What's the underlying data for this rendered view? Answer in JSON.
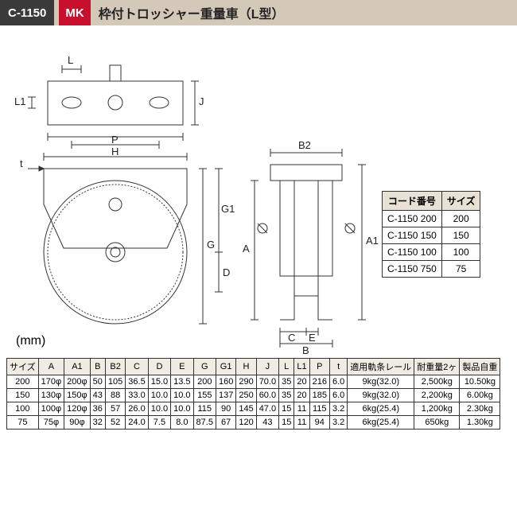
{
  "header": {
    "code": "C-1150",
    "logo": "MK",
    "title": "枠付トロッシャー重量車（L型）"
  },
  "diagram": {
    "line_color": "#333333",
    "line_width": 1,
    "dim_labels": {
      "L": "L",
      "L1": "L1",
      "P": "P",
      "H": "H",
      "t": "t",
      "J": "J",
      "G1": "G1",
      "G": "G",
      "D": "D",
      "B2": "B2",
      "A": "A",
      "A1": "A1",
      "C": "C",
      "E": "E",
      "B": "B"
    }
  },
  "code_table": {
    "headers": [
      "コード番号",
      "サイズ"
    ],
    "rows": [
      [
        "C-1150 200",
        "200"
      ],
      [
        "C-1150 150",
        "150"
      ],
      [
        "C-1150 100",
        "100"
      ],
      [
        "C-1150 750",
        "75"
      ]
    ]
  },
  "unit": "(mm)",
  "spec_table": {
    "headers": [
      "サイズ",
      "A",
      "A1",
      "B",
      "B2",
      "C",
      "D",
      "E",
      "G",
      "G1",
      "H",
      "J",
      "L",
      "L1",
      "P",
      "t",
      "適用軌条レール",
      "耐重量2ヶ",
      "製品自重"
    ],
    "rows": [
      [
        "200",
        "170φ",
        "200φ",
        "50",
        "105",
        "36.5",
        "15.0",
        "13.5",
        "200",
        "160",
        "290",
        "70.0",
        "35",
        "20",
        "216",
        "6.0",
        "9kg(32.0)",
        "2,500kg",
        "10.50kg"
      ],
      [
        "150",
        "130φ",
        "150φ",
        "43",
        "88",
        "33.0",
        "10.0",
        "10.0",
        "155",
        "137",
        "250",
        "60.0",
        "35",
        "20",
        "185",
        "6.0",
        "9kg(32.0)",
        "2,200kg",
        "6.00kg"
      ],
      [
        "100",
        "100φ",
        "120φ",
        "36",
        "57",
        "26.0",
        "10.0",
        "10.0",
        "115",
        "90",
        "145",
        "47.0",
        "15",
        "11",
        "115",
        "3.2",
        "6kg(25.4)",
        "1,200kg",
        "2.30kg"
      ],
      [
        "75",
        "75φ",
        "90φ",
        "32",
        "52",
        "24.0",
        "7.5",
        "8.0",
        "87.5",
        "67",
        "120",
        "43",
        "15",
        "11",
        "94",
        "3.2",
        "6kg(25.4)",
        "650kg",
        "1.30kg"
      ]
    ]
  },
  "colors": {
    "header_bg": "#d4c9b8",
    "code_bg": "#3a3a3a",
    "logo_bg": "#c8102e"
  }
}
